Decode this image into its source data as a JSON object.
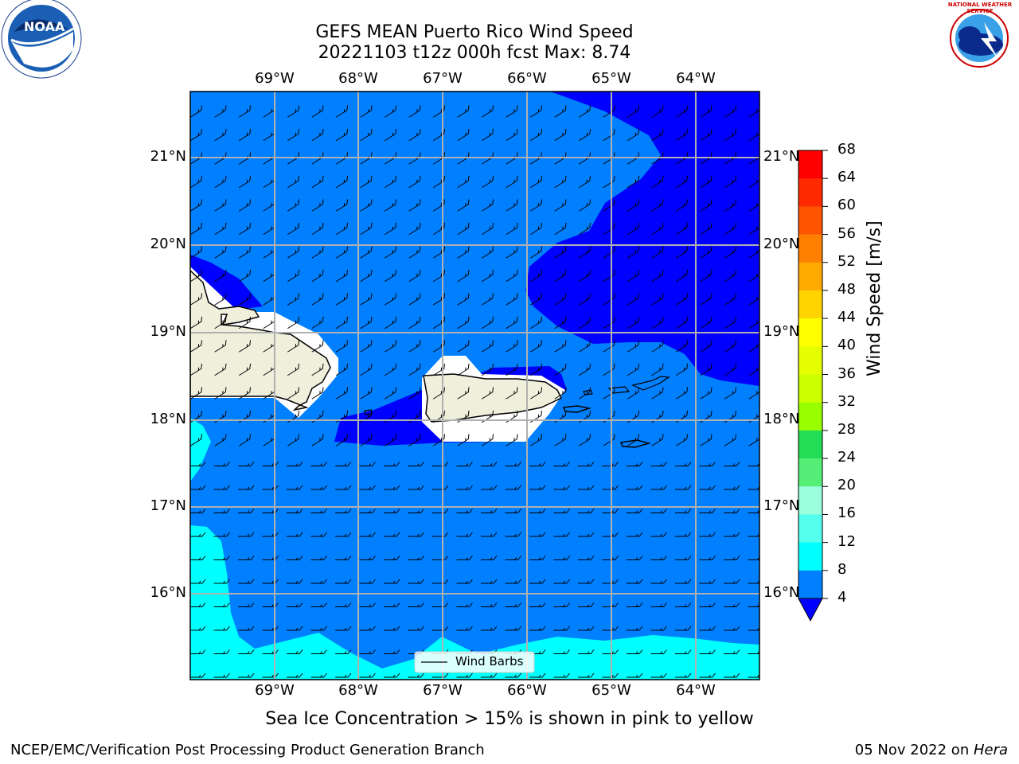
{
  "title_line1": "GEFS MEAN Puerto Rico Wind Speed",
  "title_line2": "20221103 t12z 000h fcst   Max: 8.74",
  "logos": {
    "left": {
      "icon": "noaa-logo-icon",
      "text": "NOAA"
    },
    "right": {
      "icon": "nws-logo-icon",
      "text": "NATIONAL WEATHER SERVICE"
    }
  },
  "lon_ticks": [
    "69°W",
    "68°W",
    "67°W",
    "66°W",
    "65°W",
    "64°W"
  ],
  "lat_ticks": [
    "21°N",
    "20°N",
    "19°N",
    "18°N",
    "17°N",
    "16°N"
  ],
  "legend": {
    "label": "Wind Barbs"
  },
  "colorbar": {
    "label": "Wind Speed [m/s]",
    "ticks": [
      "68",
      "64",
      "60",
      "56",
      "52",
      "48",
      "44",
      "40",
      "36",
      "32",
      "28",
      "24",
      "20",
      "16",
      "12",
      "8",
      "4"
    ],
    "colors": [
      "#ff0000",
      "#ff2a00",
      "#ff5500",
      "#ff8000",
      "#ffaa00",
      "#ffd400",
      "#ffff00",
      "#e6ff00",
      "#ccff00",
      "#99ff00",
      "#4cdd2c",
      "#00ee00",
      "#22dd55",
      "#55ee77",
      "#99ffdd",
      "#55ffee",
      "#00ffff",
      "#0080ff"
    ],
    "under_color": "#0000ff"
  },
  "subtitle": "Sea Ice Concentration > 15% is shown in pink to yellow",
  "footer_left": "NCEP/EMC/Verification Post Processing Product Generation Branch",
  "footer_right_date": "05 Nov 2022 on ",
  "footer_right_host": "Hera"
}
